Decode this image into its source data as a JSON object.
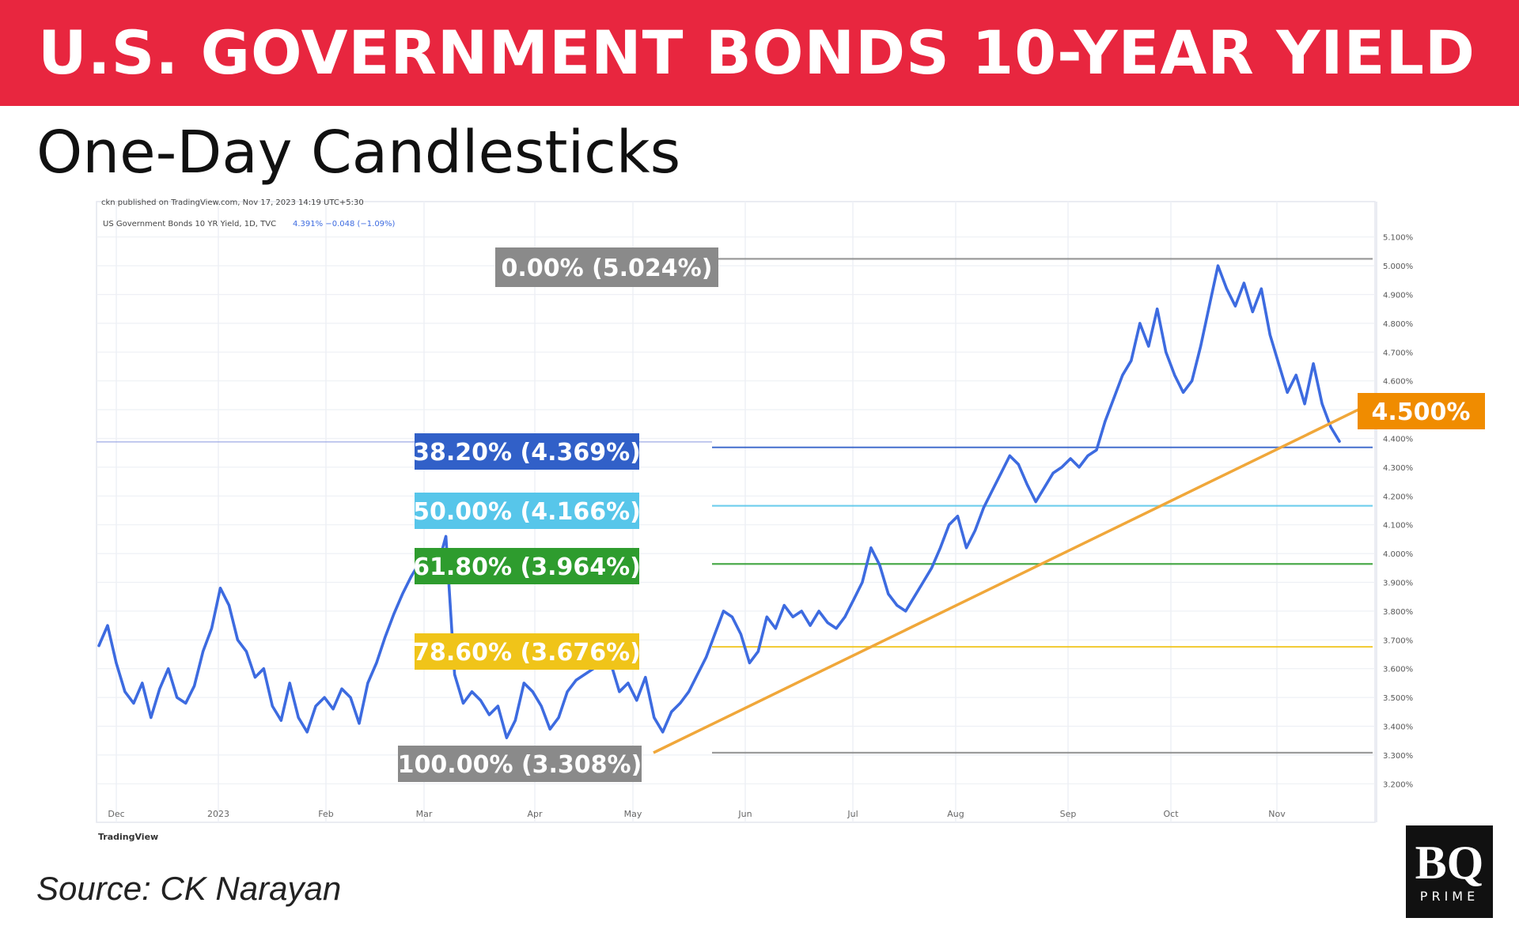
{
  "header": {
    "title": "U.S. GOVERNMENT BONDS 10-YEAR YIELD",
    "subtitle": "One-Day Candlesticks"
  },
  "footer": {
    "source": "Source: CK Narayan",
    "logo_main": "BQ",
    "logo_sub": "PRIME"
  },
  "colors": {
    "banner": "#e8263f",
    "series": "#3d6be0",
    "trendline": "#f0a73a",
    "fib_0": "#8a8a8a",
    "fib_382": "#3160c8",
    "fib_50": "#57c6ea",
    "fib_618": "#2e9c2e",
    "fib_786": "#f0c419",
    "fib_100": "#8a8a8a",
    "current_label": "#f08c00"
  },
  "chart_data": {
    "type": "line",
    "title": "",
    "xlabel": "",
    "ylabel": "",
    "x_labels": [
      "Dec",
      "2023",
      "Feb",
      "Mar",
      "Apr",
      "May",
      "Jun",
      "Jul",
      "Aug",
      "Sep",
      "Oct",
      "Nov"
    ],
    "y_ticks": [
      "5.100%",
      "5.000%",
      "4.900%",
      "4.800%",
      "4.700%",
      "4.600%",
      "4.500%",
      "4.400%",
      "4.300%",
      "4.200%",
      "4.100%",
      "4.000%",
      "3.900%",
      "3.800%",
      "3.700%",
      "3.600%",
      "3.500%",
      "3.400%",
      "3.300%",
      "3.200%"
    ],
    "ylim": [
      3.2,
      5.1
    ],
    "grid": true,
    "series": [
      {
        "values": [
          3.68,
          3.75,
          3.62,
          3.52,
          3.48,
          3.55,
          3.43,
          3.53,
          3.6,
          3.5,
          3.48,
          3.54,
          3.66,
          3.74,
          3.88,
          3.82,
          3.7,
          3.66,
          3.57,
          3.6,
          3.47,
          3.42,
          3.55,
          3.43,
          3.38,
          3.47,
          3.5,
          3.46,
          3.53,
          3.5,
          3.41,
          3.55,
          3.62,
          3.71,
          3.79,
          3.86,
          3.92,
          3.97,
          4.01,
          3.95,
          4.06,
          3.58,
          3.48,
          3.52,
          3.49,
          3.44,
          3.47,
          3.36,
          3.42,
          3.55,
          3.52,
          3.47,
          3.39,
          3.43,
          3.52,
          3.56,
          3.58,
          3.6,
          3.64,
          3.62,
          3.52,
          3.55,
          3.49,
          3.57,
          3.43,
          3.38,
          3.45,
          3.48,
          3.52,
          3.58,
          3.64,
          3.72,
          3.8,
          3.78,
          3.72,
          3.62,
          3.66,
          3.78,
          3.74,
          3.82,
          3.78,
          3.8,
          3.75,
          3.8,
          3.76,
          3.74,
          3.78,
          3.84,
          3.9,
          4.02,
          3.96,
          3.86,
          3.82,
          3.8,
          3.85,
          3.9,
          3.95,
          4.02,
          4.1,
          4.13,
          4.02,
          4.08,
          4.16,
          4.22,
          4.28,
          4.34,
          4.31,
          4.24,
          4.18,
          4.23,
          4.28,
          4.3,
          4.33,
          4.3,
          4.34,
          4.36,
          4.46,
          4.54,
          4.62,
          4.67,
          4.8,
          4.72,
          4.85,
          4.7,
          4.62,
          4.56,
          4.6,
          4.72,
          4.86,
          5.0,
          4.92,
          4.86,
          4.94,
          4.84,
          4.92,
          4.76,
          4.66,
          4.56,
          4.62,
          4.52,
          4.66,
          4.52,
          4.44,
          4.39
        ]
      }
    ],
    "trendline": {
      "start": 3.308,
      "end": 4.5
    },
    "fib_levels": [
      {
        "label": "0.00% (5.024%)",
        "value": 5.024
      },
      {
        "label": "38.20% (4.369%)",
        "value": 4.369
      },
      {
        "label": "50.00% (4.166%)",
        "value": 4.166
      },
      {
        "label": "61.80% (3.964%)",
        "value": 3.964
      },
      {
        "label": "78.60% (3.676%)",
        "value": 3.676
      },
      {
        "label": "100.00% (3.308%)",
        "value": 3.308
      }
    ],
    "current_value_label": "4.500%",
    "tv_header_line1": "ckn published on TradingView.com, Nov 17, 2023 14:19 UTC+5:30",
    "tv_header_line2": "US Government Bonds 10 YR Yield, 1D, TVC",
    "tv_header_values": "4.391% −0.048 (−1.09%)",
    "tv_logo": "TradingView"
  }
}
